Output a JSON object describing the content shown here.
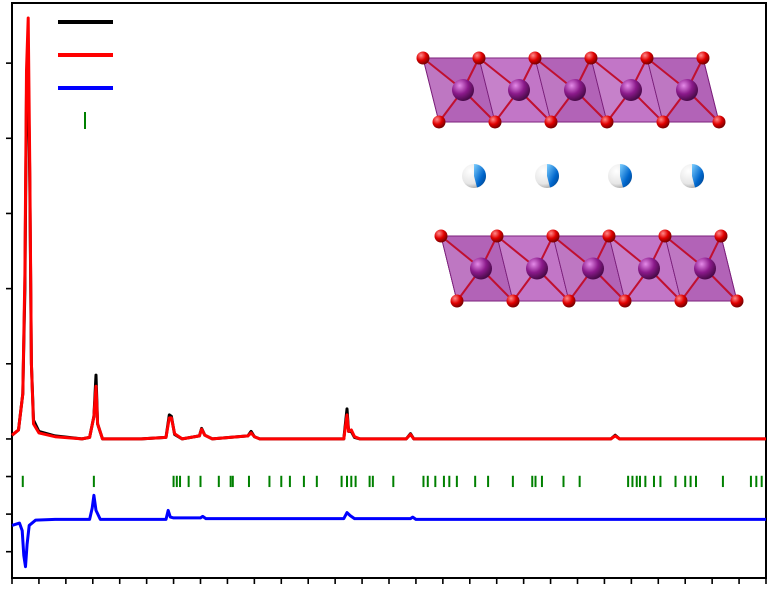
{
  "chart_data": {
    "type": "line",
    "title": "",
    "xlabel": "",
    "ylabel": "",
    "xlim": [
      10,
      80
    ],
    "ylim": [
      -0.85,
      6.8
    ],
    "grid": false,
    "legend_position": "top-left",
    "x_ticks": [
      10,
      12.5,
      15,
      17.5,
      20,
      22.5,
      25,
      27.5,
      30,
      32.5,
      35,
      37.5,
      40,
      42.5,
      45,
      47.5,
      50,
      52.5,
      55,
      57.5,
      60,
      62.5,
      65,
      67.5,
      70,
      72.5,
      75,
      77.5,
      80
    ],
    "y_ticks": [
      -0.5,
      0,
      0.5,
      1,
      2,
      3,
      4,
      5,
      6
    ],
    "series": [
      {
        "type": "line",
        "color": "#000000",
        "points": [
          [
            10,
            1.05
          ],
          [
            10.6,
            1.12
          ],
          [
            11.0,
            1.6
          ],
          [
            11.2,
            3.0
          ],
          [
            11.35,
            5.6
          ],
          [
            11.5,
            6.0
          ],
          [
            11.65,
            4.4
          ],
          [
            11.8,
            2.0
          ],
          [
            12.0,
            1.25
          ],
          [
            12.5,
            1.1
          ],
          [
            14,
            1.04
          ],
          [
            16.5,
            1.0
          ],
          [
            17.2,
            1.02
          ],
          [
            17.6,
            1.3
          ],
          [
            17.8,
            1.85
          ],
          [
            17.95,
            1.2
          ],
          [
            18.4,
            1.0
          ],
          [
            22,
            1.0
          ],
          [
            24.3,
            1.02
          ],
          [
            24.6,
            1.32
          ],
          [
            24.8,
            1.3
          ],
          [
            25.1,
            1.06
          ],
          [
            25.8,
            1.0
          ],
          [
            27.4,
            1.04
          ],
          [
            27.6,
            1.14
          ],
          [
            27.9,
            1.05
          ],
          [
            28.6,
            1.0
          ],
          [
            31.9,
            1.04
          ],
          [
            32.2,
            1.1
          ],
          [
            32.5,
            1.03
          ],
          [
            33.0,
            1.0
          ],
          [
            40.8,
            1.0
          ],
          [
            41.1,
            1.4
          ],
          [
            41.25,
            1.1
          ],
          [
            41.5,
            1.1
          ],
          [
            41.8,
            1.02
          ],
          [
            42.3,
            1.0
          ],
          [
            46.6,
            1.0
          ],
          [
            47.0,
            1.07
          ],
          [
            47.3,
            1.0
          ],
          [
            65.6,
            1.0
          ],
          [
            66.0,
            1.05
          ],
          [
            66.4,
            1.0
          ],
          [
            80,
            1.0
          ]
        ]
      },
      {
        "type": "line",
        "color": "#ff0000",
        "points": [
          [
            10,
            1.05
          ],
          [
            10.6,
            1.12
          ],
          [
            11.0,
            1.6
          ],
          [
            11.2,
            3.2
          ],
          [
            11.35,
            5.9
          ],
          [
            11.5,
            6.6
          ],
          [
            11.65,
            4.6
          ],
          [
            11.8,
            2.0
          ],
          [
            12.0,
            1.2
          ],
          [
            12.5,
            1.08
          ],
          [
            14,
            1.03
          ],
          [
            16.5,
            1.0
          ],
          [
            17.2,
            1.02
          ],
          [
            17.6,
            1.3
          ],
          [
            17.8,
            1.7
          ],
          [
            17.95,
            1.2
          ],
          [
            18.4,
            1.0
          ],
          [
            22,
            1.0
          ],
          [
            24.3,
            1.02
          ],
          [
            24.6,
            1.28
          ],
          [
            24.8,
            1.28
          ],
          [
            25.1,
            1.07
          ],
          [
            25.8,
            1.0
          ],
          [
            27.4,
            1.04
          ],
          [
            27.6,
            1.13
          ],
          [
            27.9,
            1.05
          ],
          [
            28.6,
            1.0
          ],
          [
            31.9,
            1.04
          ],
          [
            32.2,
            1.08
          ],
          [
            32.5,
            1.03
          ],
          [
            33.0,
            1.0
          ],
          [
            40.8,
            1.0
          ],
          [
            41.1,
            1.32
          ],
          [
            41.25,
            1.1
          ],
          [
            41.5,
            1.12
          ],
          [
            41.8,
            1.03
          ],
          [
            42.3,
            1.0
          ],
          [
            46.6,
            1.0
          ],
          [
            47.0,
            1.06
          ],
          [
            47.3,
            1.0
          ],
          [
            65.6,
            1.0
          ],
          [
            66.0,
            1.04
          ],
          [
            66.4,
            1.0
          ],
          [
            80,
            1.0
          ]
        ]
      },
      {
        "type": "line",
        "color": "#0000ff",
        "points": [
          [
            10,
            -0.15
          ],
          [
            10.7,
            -0.12
          ],
          [
            10.95,
            -0.22
          ],
          [
            11.1,
            -0.55
          ],
          [
            11.25,
            -0.7
          ],
          [
            11.4,
            -0.4
          ],
          [
            11.6,
            -0.15
          ],
          [
            12.2,
            -0.08
          ],
          [
            14,
            -0.07
          ],
          [
            17.2,
            -0.07
          ],
          [
            17.45,
            0.08
          ],
          [
            17.6,
            0.25
          ],
          [
            17.8,
            0.05
          ],
          [
            18.2,
            -0.07
          ],
          [
            24.3,
            -0.07
          ],
          [
            24.5,
            0.05
          ],
          [
            24.7,
            -0.04
          ],
          [
            25.0,
            -0.05
          ],
          [
            27.5,
            -0.05
          ],
          [
            27.7,
            -0.03
          ],
          [
            28.0,
            -0.06
          ],
          [
            40.8,
            -0.06
          ],
          [
            41.1,
            0.02
          ],
          [
            41.4,
            -0.02
          ],
          [
            41.8,
            -0.06
          ],
          [
            47.0,
            -0.06
          ],
          [
            47.2,
            -0.04
          ],
          [
            47.5,
            -0.07
          ],
          [
            80,
            -0.07
          ]
        ]
      }
    ],
    "reflection_marks": {
      "color": "#008000",
      "positions": [
        11.0,
        17.6,
        25.0,
        25.3,
        25.6,
        26.4,
        27.5,
        29.2,
        30.3,
        30.5,
        32.0,
        33.9,
        35.0,
        35.8,
        37.1,
        38.3,
        40.6,
        41.1,
        41.5,
        41.9,
        43.2,
        43.5,
        45.4,
        48.2,
        48.6,
        49.3,
        50.1,
        50.6,
        51.3,
        53.0,
        54.2,
        56.5,
        58.3,
        58.6,
        59.2,
        61.2,
        62.7,
        67.2,
        67.6,
        68.0,
        68.3,
        68.8,
        69.6,
        70.2,
        71.6,
        72.5,
        73.0,
        73.5,
        76.0,
        78.6,
        79.1,
        79.6
      ]
    },
    "legend_entries": [
      {
        "color": "#000000",
        "kind": "line"
      },
      {
        "color": "#ff0000",
        "kind": "line"
      },
      {
        "color": "#0000ff",
        "kind": "line"
      },
      {
        "color": "#008000",
        "kind": "tick"
      }
    ],
    "inset": {
      "type": "crystal-structure",
      "polyhedra_color": "#a63fae",
      "metal_atom_color": "#8b1a8b",
      "oxygen_atom_color": "#e00000",
      "interlayer_atom_colors": [
        "#ffffff",
        "#0066cc"
      ]
    }
  }
}
